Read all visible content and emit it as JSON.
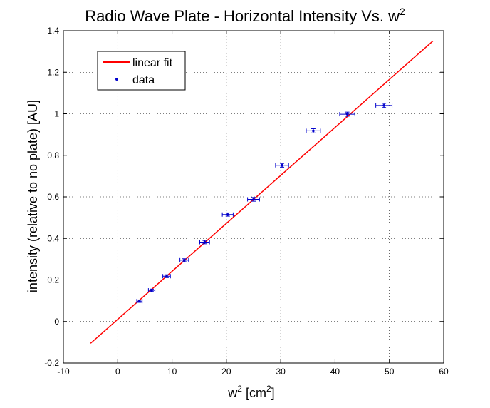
{
  "chart_data": {
    "type": "scatter",
    "title": "Radio Wave Plate - Horizontal Intensity Vs. w",
    "title_superscript": "2",
    "xlabel": "w",
    "xlabel_superscript": "2",
    "xlabel_suffix": " [cm",
    "xlabel_suffix_superscript": "2",
    "xlabel_close": "]",
    "ylabel": "intensity (relative to no plate) [AU]",
    "xlim": [
      -10,
      60
    ],
    "ylim": [
      -0.2,
      1.4
    ],
    "xticks": [
      -10,
      0,
      10,
      20,
      30,
      40,
      50,
      60
    ],
    "yticks": [
      -0.2,
      0,
      0.2,
      0.4,
      0.6,
      0.8,
      1,
      1.2,
      1.4
    ],
    "xtick_labels": [
      "-10",
      "0",
      "10",
      "20",
      "30",
      "40",
      "50",
      "60"
    ],
    "ytick_labels": [
      "-0.2",
      "0",
      "0.2",
      "0.4",
      "0.6",
      "0.8",
      "1",
      "1.2",
      "1.4"
    ],
    "grid": true,
    "legend_position": "top-left",
    "series": [
      {
        "name": "linear fit",
        "kind": "line",
        "color": "#ff0000",
        "x": [
          -5,
          58
        ],
        "y": [
          -0.105,
          1.35
        ]
      },
      {
        "name": "data",
        "kind": "points",
        "color": "#0000cc",
        "x": [
          4,
          6.25,
          9,
          12.25,
          16,
          20.25,
          25,
          30.25,
          36,
          42.25,
          49
        ],
        "y": [
          0.098,
          0.15,
          0.218,
          0.295,
          0.382,
          0.515,
          0.588,
          0.752,
          0.918,
          0.998,
          1.04
        ],
        "xerr": [
          0.5,
          0.6,
          0.7,
          0.8,
          0.9,
          1.0,
          1.1,
          1.2,
          1.3,
          1.4,
          1.5
        ],
        "yerr": [
          0.006,
          0.006,
          0.007,
          0.007,
          0.008,
          0.008,
          0.009,
          0.009,
          0.01,
          0.01,
          0.01
        ]
      }
    ]
  }
}
